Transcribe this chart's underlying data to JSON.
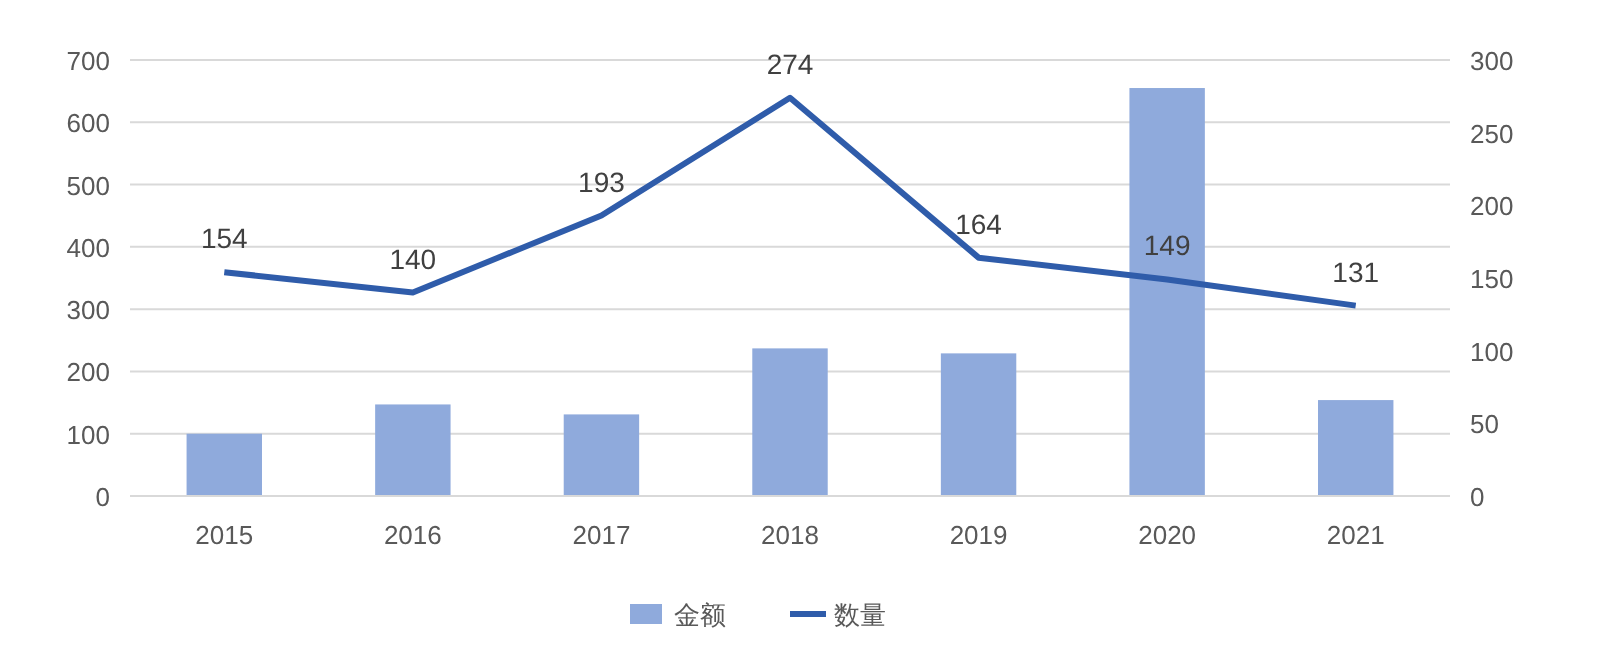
{
  "chart_data": {
    "type": "bar",
    "categories": [
      "2015",
      "2016",
      "2017",
      "2018",
      "2019",
      "2020",
      "2021"
    ],
    "series": [
      {
        "name": "金额",
        "color": "#8faadc",
        "values": [
          100,
          147,
          131,
          237,
          229,
          655,
          154
        ]
      },
      {
        "name": "数量",
        "type": "line",
        "axis": "y2",
        "color": "#2f5caa",
        "values": [
          154,
          140,
          193,
          274,
          164,
          149,
          131
        ],
        "value_labels": [
          "154",
          "140",
          "193",
          "274",
          "164",
          "149",
          "131"
        ]
      }
    ],
    "ylim": [
      0,
      700
    ],
    "yticks": [
      0,
      100,
      200,
      300,
      400,
      500,
      600,
      700
    ],
    "y2lim": [
      0,
      300
    ],
    "y2ticks": [
      0,
      50,
      100,
      150,
      200,
      250,
      300
    ],
    "grid": "y",
    "legend": "bottom",
    "marker": "none"
  }
}
